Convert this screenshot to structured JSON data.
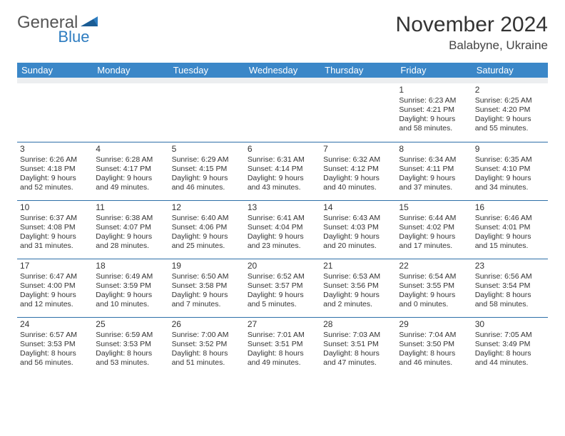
{
  "brand": {
    "part1": "General",
    "part2": "Blue"
  },
  "title": "November 2024",
  "location": "Balabyne, Ukraine",
  "colors": {
    "header_bg": "#3b87c8",
    "header_text": "#ffffff",
    "divider": "#2d6fa8",
    "spacer_bg": "#eceef0",
    "brand_accent": "#2d7cc0"
  },
  "day_names": [
    "Sunday",
    "Monday",
    "Tuesday",
    "Wednesday",
    "Thursday",
    "Friday",
    "Saturday"
  ],
  "weeks": [
    [
      null,
      null,
      null,
      null,
      null,
      {
        "n": "1",
        "sunrise": "Sunrise: 6:23 AM",
        "sunset": "Sunset: 4:21 PM",
        "day1": "Daylight: 9 hours",
        "day2": "and 58 minutes."
      },
      {
        "n": "2",
        "sunrise": "Sunrise: 6:25 AM",
        "sunset": "Sunset: 4:20 PM",
        "day1": "Daylight: 9 hours",
        "day2": "and 55 minutes."
      }
    ],
    [
      {
        "n": "3",
        "sunrise": "Sunrise: 6:26 AM",
        "sunset": "Sunset: 4:18 PM",
        "day1": "Daylight: 9 hours",
        "day2": "and 52 minutes."
      },
      {
        "n": "4",
        "sunrise": "Sunrise: 6:28 AM",
        "sunset": "Sunset: 4:17 PM",
        "day1": "Daylight: 9 hours",
        "day2": "and 49 minutes."
      },
      {
        "n": "5",
        "sunrise": "Sunrise: 6:29 AM",
        "sunset": "Sunset: 4:15 PM",
        "day1": "Daylight: 9 hours",
        "day2": "and 46 minutes."
      },
      {
        "n": "6",
        "sunrise": "Sunrise: 6:31 AM",
        "sunset": "Sunset: 4:14 PM",
        "day1": "Daylight: 9 hours",
        "day2": "and 43 minutes."
      },
      {
        "n": "7",
        "sunrise": "Sunrise: 6:32 AM",
        "sunset": "Sunset: 4:12 PM",
        "day1": "Daylight: 9 hours",
        "day2": "and 40 minutes."
      },
      {
        "n": "8",
        "sunrise": "Sunrise: 6:34 AM",
        "sunset": "Sunset: 4:11 PM",
        "day1": "Daylight: 9 hours",
        "day2": "and 37 minutes."
      },
      {
        "n": "9",
        "sunrise": "Sunrise: 6:35 AM",
        "sunset": "Sunset: 4:10 PM",
        "day1": "Daylight: 9 hours",
        "day2": "and 34 minutes."
      }
    ],
    [
      {
        "n": "10",
        "sunrise": "Sunrise: 6:37 AM",
        "sunset": "Sunset: 4:08 PM",
        "day1": "Daylight: 9 hours",
        "day2": "and 31 minutes."
      },
      {
        "n": "11",
        "sunrise": "Sunrise: 6:38 AM",
        "sunset": "Sunset: 4:07 PM",
        "day1": "Daylight: 9 hours",
        "day2": "and 28 minutes."
      },
      {
        "n": "12",
        "sunrise": "Sunrise: 6:40 AM",
        "sunset": "Sunset: 4:06 PM",
        "day1": "Daylight: 9 hours",
        "day2": "and 25 minutes."
      },
      {
        "n": "13",
        "sunrise": "Sunrise: 6:41 AM",
        "sunset": "Sunset: 4:04 PM",
        "day1": "Daylight: 9 hours",
        "day2": "and 23 minutes."
      },
      {
        "n": "14",
        "sunrise": "Sunrise: 6:43 AM",
        "sunset": "Sunset: 4:03 PM",
        "day1": "Daylight: 9 hours",
        "day2": "and 20 minutes."
      },
      {
        "n": "15",
        "sunrise": "Sunrise: 6:44 AM",
        "sunset": "Sunset: 4:02 PM",
        "day1": "Daylight: 9 hours",
        "day2": "and 17 minutes."
      },
      {
        "n": "16",
        "sunrise": "Sunrise: 6:46 AM",
        "sunset": "Sunset: 4:01 PM",
        "day1": "Daylight: 9 hours",
        "day2": "and 15 minutes."
      }
    ],
    [
      {
        "n": "17",
        "sunrise": "Sunrise: 6:47 AM",
        "sunset": "Sunset: 4:00 PM",
        "day1": "Daylight: 9 hours",
        "day2": "and 12 minutes."
      },
      {
        "n": "18",
        "sunrise": "Sunrise: 6:49 AM",
        "sunset": "Sunset: 3:59 PM",
        "day1": "Daylight: 9 hours",
        "day2": "and 10 minutes."
      },
      {
        "n": "19",
        "sunrise": "Sunrise: 6:50 AM",
        "sunset": "Sunset: 3:58 PM",
        "day1": "Daylight: 9 hours",
        "day2": "and 7 minutes."
      },
      {
        "n": "20",
        "sunrise": "Sunrise: 6:52 AM",
        "sunset": "Sunset: 3:57 PM",
        "day1": "Daylight: 9 hours",
        "day2": "and 5 minutes."
      },
      {
        "n": "21",
        "sunrise": "Sunrise: 6:53 AM",
        "sunset": "Sunset: 3:56 PM",
        "day1": "Daylight: 9 hours",
        "day2": "and 2 minutes."
      },
      {
        "n": "22",
        "sunrise": "Sunrise: 6:54 AM",
        "sunset": "Sunset: 3:55 PM",
        "day1": "Daylight: 9 hours",
        "day2": "and 0 minutes."
      },
      {
        "n": "23",
        "sunrise": "Sunrise: 6:56 AM",
        "sunset": "Sunset: 3:54 PM",
        "day1": "Daylight: 8 hours",
        "day2": "and 58 minutes."
      }
    ],
    [
      {
        "n": "24",
        "sunrise": "Sunrise: 6:57 AM",
        "sunset": "Sunset: 3:53 PM",
        "day1": "Daylight: 8 hours",
        "day2": "and 56 minutes."
      },
      {
        "n": "25",
        "sunrise": "Sunrise: 6:59 AM",
        "sunset": "Sunset: 3:53 PM",
        "day1": "Daylight: 8 hours",
        "day2": "and 53 minutes."
      },
      {
        "n": "26",
        "sunrise": "Sunrise: 7:00 AM",
        "sunset": "Sunset: 3:52 PM",
        "day1": "Daylight: 8 hours",
        "day2": "and 51 minutes."
      },
      {
        "n": "27",
        "sunrise": "Sunrise: 7:01 AM",
        "sunset": "Sunset: 3:51 PM",
        "day1": "Daylight: 8 hours",
        "day2": "and 49 minutes."
      },
      {
        "n": "28",
        "sunrise": "Sunrise: 7:03 AM",
        "sunset": "Sunset: 3:51 PM",
        "day1": "Daylight: 8 hours",
        "day2": "and 47 minutes."
      },
      {
        "n": "29",
        "sunrise": "Sunrise: 7:04 AM",
        "sunset": "Sunset: 3:50 PM",
        "day1": "Daylight: 8 hours",
        "day2": "and 46 minutes."
      },
      {
        "n": "30",
        "sunrise": "Sunrise: 7:05 AM",
        "sunset": "Sunset: 3:49 PM",
        "day1": "Daylight: 8 hours",
        "day2": "and 44 minutes."
      }
    ]
  ]
}
